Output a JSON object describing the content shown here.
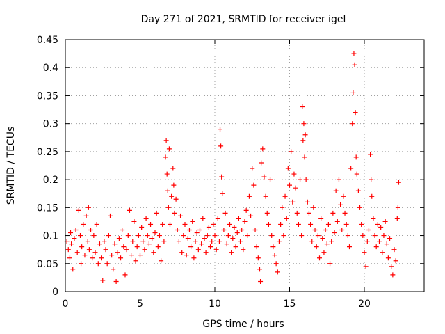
{
  "chart_data": {
    "type": "scatter",
    "title": "Day 271 of 2021, SRMTID for receiver igel",
    "xlabel": "GPS time / hours",
    "ylabel": "SRMTID / TECUs",
    "xlim": [
      0,
      24
    ],
    "ylim": [
      0,
      0.45
    ],
    "x_ticks": [
      0,
      5,
      10,
      15,
      20
    ],
    "x_tick_labels": [
      "0",
      "5",
      "10",
      "15",
      "20"
    ],
    "y_ticks": [
      0,
      0.05,
      0.1,
      0.15,
      0.2,
      0.25,
      0.3,
      0.35,
      0.4,
      0.45
    ],
    "y_tick_labels": [
      "0",
      "0.05",
      "0.1",
      "0.15",
      "0.2",
      "0.25",
      "0.3",
      "0.35",
      "0.4",
      "0.45"
    ],
    "grid": true,
    "marker": "+",
    "marker_color": "#ff0000",
    "series": [
      {
        "name": "SRMTID",
        "points": [
          [
            0.1,
            0.09
          ],
          [
            0.2,
            0.075
          ],
          [
            0.3,
            0.06
          ],
          [
            0.35,
            0.105
          ],
          [
            0.4,
            0.085
          ],
          [
            0.5,
            0.04
          ],
          [
            0.6,
            0.095
          ],
          [
            0.7,
            0.11
          ],
          [
            0.8,
            0.07
          ],
          [
            0.9,
            0.145
          ],
          [
            1.0,
            0.1
          ],
          [
            1.05,
            0.05
          ],
          [
            1.1,
            0.08
          ],
          [
            1.2,
            0.12
          ],
          [
            1.3,
            0.065
          ],
          [
            1.4,
            0.135
          ],
          [
            1.5,
            0.09
          ],
          [
            1.55,
            0.15
          ],
          [
            1.6,
            0.075
          ],
          [
            1.7,
            0.11
          ],
          [
            1.8,
            0.06
          ],
          [
            1.9,
            0.1
          ],
          [
            2.0,
            0.07
          ],
          [
            2.1,
            0.12
          ],
          [
            2.2,
            0.05
          ],
          [
            2.3,
            0.085
          ],
          [
            2.4,
            0.06
          ],
          [
            2.5,
            0.02
          ],
          [
            2.6,
            0.09
          ],
          [
            2.7,
            0.075
          ],
          [
            2.8,
            0.05
          ],
          [
            2.9,
            0.1
          ],
          [
            3.0,
            0.135
          ],
          [
            3.1,
            0.065
          ],
          [
            3.2,
            0.04
          ],
          [
            3.3,
            0.085
          ],
          [
            3.4,
            0.018
          ],
          [
            3.5,
            0.07
          ],
          [
            3.6,
            0.095
          ],
          [
            3.7,
            0.06
          ],
          [
            3.8,
            0.11
          ],
          [
            3.9,
            0.08
          ],
          [
            4.0,
            0.03
          ],
          [
            4.1,
            0.075
          ],
          [
            4.2,
            0.1
          ],
          [
            4.3,
            0.145
          ],
          [
            4.4,
            0.065
          ],
          [
            4.5,
            0.09
          ],
          [
            4.6,
            0.125
          ],
          [
            4.7,
            0.055
          ],
          [
            4.8,
            0.08
          ],
          [
            4.9,
            0.1
          ],
          [
            5.0,
            0.065
          ],
          [
            5.1,
            0.115
          ],
          [
            5.2,
            0.09
          ],
          [
            5.3,
            0.075
          ],
          [
            5.4,
            0.13
          ],
          [
            5.5,
            0.1
          ],
          [
            5.6,
            0.085
          ],
          [
            5.7,
            0.12
          ],
          [
            5.8,
            0.095
          ],
          [
            5.9,
            0.07
          ],
          [
            6.0,
            0.105
          ],
          [
            6.1,
            0.14
          ],
          [
            6.2,
            0.08
          ],
          [
            6.3,
            0.1
          ],
          [
            6.4,
            0.055
          ],
          [
            6.5,
            0.12
          ],
          [
            6.6,
            0.09
          ],
          [
            6.7,
            0.24
          ],
          [
            6.75,
            0.27
          ],
          [
            6.8,
            0.21
          ],
          [
            6.85,
            0.18
          ],
          [
            6.9,
            0.15
          ],
          [
            6.95,
            0.255
          ],
          [
            7.0,
            0.12
          ],
          [
            7.1,
            0.17
          ],
          [
            7.2,
            0.22
          ],
          [
            7.25,
            0.19
          ],
          [
            7.3,
            0.14
          ],
          [
            7.4,
            0.165
          ],
          [
            7.5,
            0.11
          ],
          [
            7.6,
            0.09
          ],
          [
            7.7,
            0.135
          ],
          [
            7.8,
            0.07
          ],
          [
            7.9,
            0.1
          ],
          [
            8.0,
            0.12
          ],
          [
            8.1,
            0.065
          ],
          [
            8.2,
            0.095
          ],
          [
            8.3,
            0.11
          ],
          [
            8.4,
            0.08
          ],
          [
            8.5,
            0.125
          ],
          [
            8.6,
            0.06
          ],
          [
            8.7,
            0.09
          ],
          [
            8.8,
            0.105
          ],
          [
            8.9,
            0.075
          ],
          [
            9.0,
            0.11
          ],
          [
            9.1,
            0.085
          ],
          [
            9.2,
            0.13
          ],
          [
            9.3,
            0.095
          ],
          [
            9.4,
            0.07
          ],
          [
            9.5,
            0.1
          ],
          [
            9.6,
            0.115
          ],
          [
            9.7,
            0.08
          ],
          [
            9.8,
            0.09
          ],
          [
            9.9,
            0.12
          ],
          [
            10.0,
            0.1
          ],
          [
            10.1,
            0.075
          ],
          [
            10.2,
            0.13
          ],
          [
            10.3,
            0.09
          ],
          [
            10.35,
            0.29
          ],
          [
            10.4,
            0.26
          ],
          [
            10.45,
            0.205
          ],
          [
            10.5,
            0.175
          ],
          [
            10.6,
            0.11
          ],
          [
            10.7,
            0.14
          ],
          [
            10.8,
            0.085
          ],
          [
            10.9,
            0.1
          ],
          [
            11.0,
            0.12
          ],
          [
            11.1,
            0.07
          ],
          [
            11.2,
            0.095
          ],
          [
            11.3,
            0.115
          ],
          [
            11.4,
            0.08
          ],
          [
            11.5,
            0.105
          ],
          [
            11.6,
            0.13
          ],
          [
            11.7,
            0.09
          ],
          [
            11.8,
            0.11
          ],
          [
            11.9,
            0.075
          ],
          [
            12.0,
            0.125
          ],
          [
            12.1,
            0.145
          ],
          [
            12.2,
            0.1
          ],
          [
            12.3,
            0.17
          ],
          [
            12.4,
            0.135
          ],
          [
            12.5,
            0.22
          ],
          [
            12.6,
            0.19
          ],
          [
            12.7,
            0.11
          ],
          [
            12.8,
            0.08
          ],
          [
            12.9,
            0.06
          ],
          [
            13.0,
            0.04
          ],
          [
            13.05,
            0.018
          ],
          [
            13.1,
            0.23
          ],
          [
            13.2,
            0.255
          ],
          [
            13.3,
            0.205
          ],
          [
            13.4,
            0.17
          ],
          [
            13.5,
            0.14
          ],
          [
            13.6,
            0.12
          ],
          [
            13.7,
            0.2
          ],
          [
            13.8,
            0.1
          ],
          [
            13.9,
            0.08
          ],
          [
            14.0,
            0.065
          ],
          [
            14.1,
            0.05
          ],
          [
            14.2,
            0.035
          ],
          [
            14.3,
            0.09
          ],
          [
            14.4,
            0.12
          ],
          [
            14.5,
            0.15
          ],
          [
            14.6,
            0.1
          ],
          [
            14.7,
            0.17
          ],
          [
            14.8,
            0.13
          ],
          [
            14.9,
            0.22
          ],
          [
            15.0,
            0.19
          ],
          [
            15.1,
            0.25
          ],
          [
            15.2,
            0.16
          ],
          [
            15.3,
            0.21
          ],
          [
            15.4,
            0.185
          ],
          [
            15.5,
            0.14
          ],
          [
            15.6,
            0.12
          ],
          [
            15.7,
            0.2
          ],
          [
            15.8,
            0.1
          ],
          [
            15.85,
            0.33
          ],
          [
            15.9,
            0.27
          ],
          [
            15.95,
            0.3
          ],
          [
            16.0,
            0.24
          ],
          [
            16.05,
            0.28
          ],
          [
            16.1,
            0.2
          ],
          [
            16.2,
            0.16
          ],
          [
            16.3,
            0.14
          ],
          [
            16.4,
            0.12
          ],
          [
            16.5,
            0.09
          ],
          [
            16.6,
            0.15
          ],
          [
            16.7,
            0.11
          ],
          [
            16.8,
            0.08
          ],
          [
            16.9,
            0.1
          ],
          [
            17.0,
            0.06
          ],
          [
            17.1,
            0.13
          ],
          [
            17.2,
            0.095
          ],
          [
            17.3,
            0.07
          ],
          [
            17.4,
            0.11
          ],
          [
            17.5,
            0.085
          ],
          [
            17.6,
            0.12
          ],
          [
            17.7,
            0.05
          ],
          [
            17.8,
            0.09
          ],
          [
            17.9,
            0.14
          ],
          [
            18.0,
            0.105
          ],
          [
            18.1,
            0.18
          ],
          [
            18.2,
            0.125
          ],
          [
            18.3,
            0.2
          ],
          [
            18.4,
            0.155
          ],
          [
            18.5,
            0.11
          ],
          [
            18.6,
            0.17
          ],
          [
            18.7,
            0.14
          ],
          [
            18.8,
            0.12
          ],
          [
            18.9,
            0.1
          ],
          [
            19.0,
            0.08
          ],
          [
            19.1,
            0.22
          ],
          [
            19.2,
            0.3
          ],
          [
            19.25,
            0.355
          ],
          [
            19.3,
            0.425
          ],
          [
            19.35,
            0.405
          ],
          [
            19.4,
            0.32
          ],
          [
            19.45,
            0.24
          ],
          [
            19.5,
            0.21
          ],
          [
            19.6,
            0.18
          ],
          [
            19.7,
            0.15
          ],
          [
            19.8,
            0.12
          ],
          [
            19.9,
            0.1
          ],
          [
            20.0,
            0.07
          ],
          [
            20.1,
            0.045
          ],
          [
            20.2,
            0.09
          ],
          [
            20.3,
            0.11
          ],
          [
            20.4,
            0.245
          ],
          [
            20.45,
            0.2
          ],
          [
            20.5,
            0.17
          ],
          [
            20.6,
            0.13
          ],
          [
            20.7,
            0.1
          ],
          [
            20.8,
            0.08
          ],
          [
            20.9,
            0.12
          ],
          [
            21.0,
            0.09
          ],
          [
            21.1,
            0.115
          ],
          [
            21.2,
            0.07
          ],
          [
            21.3,
            0.1
          ],
          [
            21.4,
            0.125
          ],
          [
            21.5,
            0.085
          ],
          [
            21.6,
            0.06
          ],
          [
            21.7,
            0.095
          ],
          [
            21.8,
            0.045
          ],
          [
            21.9,
            0.03
          ],
          [
            22.0,
            0.075
          ],
          [
            22.1,
            0.055
          ],
          [
            22.2,
            0.13
          ],
          [
            22.25,
            0.15
          ],
          [
            22.3,
            0.195
          ]
        ]
      }
    ]
  }
}
